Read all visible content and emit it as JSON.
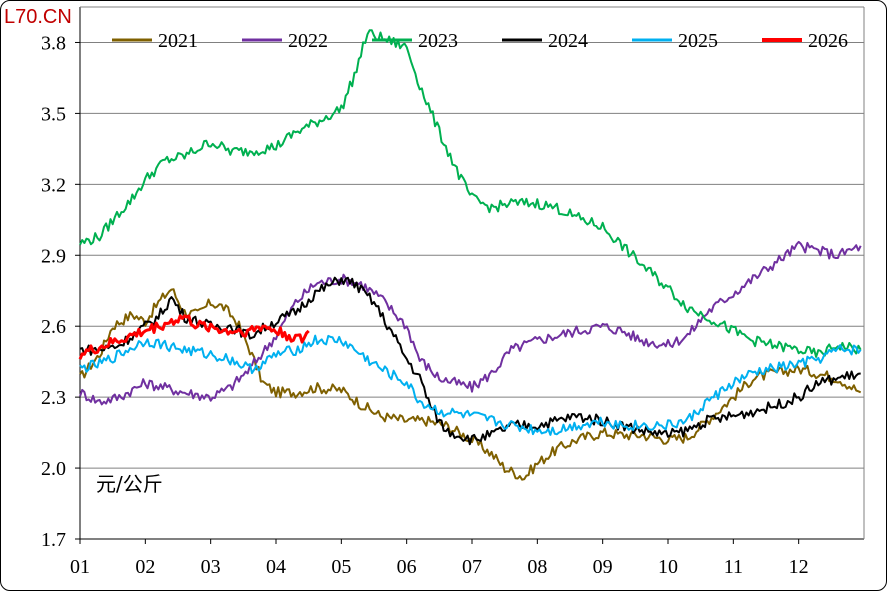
{
  "watermark": "L70.CN",
  "chart_data": {
    "type": "line",
    "ylabel": "元/公斤",
    "ylim": [
      1.7,
      3.95
    ],
    "yticks": [
      "1.7",
      "2.0",
      "2.3",
      "2.6",
      "2.9",
      "3.2",
      "3.5",
      "3.8"
    ],
    "yticks_values": [
      1.7,
      2.0,
      2.3,
      2.6,
      2.9,
      3.2,
      3.5,
      3.8
    ],
    "xticks": [
      "01",
      "02",
      "03",
      "04",
      "05",
      "06",
      "07",
      "08",
      "09",
      "10",
      "11",
      "12"
    ],
    "xlim": [
      1,
      13
    ],
    "grid": "horizontal",
    "legend_position": "top",
    "series": [
      {
        "name": "2021",
        "color": "#7f6000",
        "points": [
          [
            1.0,
            2.38
          ],
          [
            1.3,
            2.48
          ],
          [
            1.5,
            2.6
          ],
          [
            1.8,
            2.65
          ],
          [
            2.0,
            2.62
          ],
          [
            2.2,
            2.7
          ],
          [
            2.4,
            2.76
          ],
          [
            2.6,
            2.66
          ],
          [
            2.8,
            2.65
          ],
          [
            3.0,
            2.7
          ],
          [
            3.2,
            2.68
          ],
          [
            3.4,
            2.62
          ],
          [
            3.6,
            2.5
          ],
          [
            3.8,
            2.36
          ],
          [
            4.0,
            2.32
          ],
          [
            4.3,
            2.32
          ],
          [
            4.6,
            2.34
          ],
          [
            5.0,
            2.33
          ],
          [
            5.3,
            2.27
          ],
          [
            5.6,
            2.22
          ],
          [
            6.0,
            2.2
          ],
          [
            6.3,
            2.2
          ],
          [
            6.6,
            2.18
          ],
          [
            7.0,
            2.12
          ],
          [
            7.3,
            2.06
          ],
          [
            7.5,
            2.0
          ],
          [
            7.8,
            1.96
          ],
          [
            8.0,
            2.02
          ],
          [
            8.3,
            2.08
          ],
          [
            8.6,
            2.12
          ],
          [
            9.0,
            2.15
          ],
          [
            9.3,
            2.14
          ],
          [
            9.6,
            2.14
          ],
          [
            10.0,
            2.12
          ],
          [
            10.3,
            2.13
          ],
          [
            10.6,
            2.2
          ],
          [
            11.0,
            2.3
          ],
          [
            11.3,
            2.38
          ],
          [
            11.6,
            2.4
          ],
          [
            12.0,
            2.42
          ],
          [
            12.3,
            2.4
          ],
          [
            12.6,
            2.38
          ],
          [
            12.95,
            2.32
          ]
        ]
      },
      {
        "name": "2022",
        "color": "#7030a0",
        "points": [
          [
            1.0,
            2.32
          ],
          [
            1.3,
            2.28
          ],
          [
            1.6,
            2.3
          ],
          [
            2.0,
            2.36
          ],
          [
            2.3,
            2.34
          ],
          [
            2.6,
            2.32
          ],
          [
            3.0,
            2.3
          ],
          [
            3.3,
            2.34
          ],
          [
            3.6,
            2.42
          ],
          [
            4.0,
            2.56
          ],
          [
            4.3,
            2.7
          ],
          [
            4.6,
            2.78
          ],
          [
            5.0,
            2.8
          ],
          [
            5.3,
            2.78
          ],
          [
            5.6,
            2.72
          ],
          [
            6.0,
            2.6
          ],
          [
            6.2,
            2.46
          ],
          [
            6.5,
            2.38
          ],
          [
            7.0,
            2.34
          ],
          [
            7.3,
            2.4
          ],
          [
            7.6,
            2.5
          ],
          [
            8.0,
            2.54
          ],
          [
            8.3,
            2.56
          ],
          [
            8.6,
            2.58
          ],
          [
            9.0,
            2.6
          ],
          [
            9.3,
            2.58
          ],
          [
            9.6,
            2.54
          ],
          [
            10.0,
            2.52
          ],
          [
            10.3,
            2.56
          ],
          [
            10.6,
            2.66
          ],
          [
            11.0,
            2.74
          ],
          [
            11.3,
            2.8
          ],
          [
            11.6,
            2.86
          ],
          [
            12.0,
            2.94
          ],
          [
            12.3,
            2.92
          ],
          [
            12.6,
            2.9
          ],
          [
            12.95,
            2.94
          ]
        ]
      },
      {
        "name": "2023",
        "color": "#00b050",
        "points": [
          [
            1.0,
            2.95
          ],
          [
            1.3,
            2.98
          ],
          [
            1.6,
            3.08
          ],
          [
            1.8,
            3.14
          ],
          [
            2.0,
            3.22
          ],
          [
            2.3,
            3.3
          ],
          [
            2.6,
            3.32
          ],
          [
            3.0,
            3.38
          ],
          [
            3.3,
            3.34
          ],
          [
            3.6,
            3.34
          ],
          [
            4.0,
            3.36
          ],
          [
            4.3,
            3.42
          ],
          [
            4.6,
            3.46
          ],
          [
            5.0,
            3.52
          ],
          [
            5.2,
            3.66
          ],
          [
            5.4,
            3.84
          ],
          [
            5.6,
            3.82
          ],
          [
            5.8,
            3.8
          ],
          [
            6.0,
            3.78
          ],
          [
            6.2,
            3.62
          ],
          [
            6.5,
            3.42
          ],
          [
            6.8,
            3.24
          ],
          [
            7.0,
            3.14
          ],
          [
            7.3,
            3.1
          ],
          [
            7.6,
            3.12
          ],
          [
            8.0,
            3.12
          ],
          [
            8.3,
            3.1
          ],
          [
            8.6,
            3.06
          ],
          [
            9.0,
            3.02
          ],
          [
            9.3,
            2.94
          ],
          [
            9.6,
            2.86
          ],
          [
            10.0,
            2.76
          ],
          [
            10.3,
            2.68
          ],
          [
            10.6,
            2.64
          ],
          [
            11.0,
            2.58
          ],
          [
            11.3,
            2.54
          ],
          [
            11.6,
            2.52
          ],
          [
            12.0,
            2.5
          ],
          [
            12.3,
            2.48
          ],
          [
            12.6,
            2.52
          ],
          [
            12.95,
            2.5
          ]
        ]
      },
      {
        "name": "2024",
        "color": "#000000",
        "points": [
          [
            1.0,
            2.5
          ],
          [
            1.3,
            2.5
          ],
          [
            1.6,
            2.52
          ],
          [
            2.0,
            2.6
          ],
          [
            2.2,
            2.64
          ],
          [
            2.4,
            2.72
          ],
          [
            2.6,
            2.64
          ],
          [
            3.0,
            2.6
          ],
          [
            3.3,
            2.6
          ],
          [
            3.6,
            2.56
          ],
          [
            4.0,
            2.62
          ],
          [
            4.3,
            2.66
          ],
          [
            4.6,
            2.74
          ],
          [
            5.0,
            2.8
          ],
          [
            5.2,
            2.78
          ],
          [
            5.5,
            2.7
          ],
          [
            5.8,
            2.56
          ],
          [
            6.0,
            2.46
          ],
          [
            6.2,
            2.38
          ],
          [
            6.4,
            2.24
          ],
          [
            6.6,
            2.16
          ],
          [
            7.0,
            2.12
          ],
          [
            7.3,
            2.14
          ],
          [
            7.6,
            2.18
          ],
          [
            8.0,
            2.18
          ],
          [
            8.3,
            2.2
          ],
          [
            8.6,
            2.22
          ],
          [
            9.0,
            2.2
          ],
          [
            9.3,
            2.18
          ],
          [
            9.6,
            2.16
          ],
          [
            10.0,
            2.14
          ],
          [
            10.3,
            2.16
          ],
          [
            10.6,
            2.2
          ],
          [
            11.0,
            2.22
          ],
          [
            11.3,
            2.24
          ],
          [
            11.6,
            2.26
          ],
          [
            12.0,
            2.3
          ],
          [
            12.3,
            2.36
          ],
          [
            12.6,
            2.38
          ],
          [
            12.95,
            2.4
          ]
        ]
      },
      {
        "name": "2025",
        "color": "#00b0f0",
        "points": [
          [
            1.0,
            2.42
          ],
          [
            1.3,
            2.44
          ],
          [
            1.6,
            2.48
          ],
          [
            2.0,
            2.54
          ],
          [
            2.3,
            2.52
          ],
          [
            2.6,
            2.5
          ],
          [
            3.0,
            2.48
          ],
          [
            3.3,
            2.46
          ],
          [
            3.6,
            2.42
          ],
          [
            3.8,
            2.44
          ],
          [
            4.0,
            2.48
          ],
          [
            4.3,
            2.5
          ],
          [
            4.6,
            2.54
          ],
          [
            5.0,
            2.54
          ],
          [
            5.3,
            2.48
          ],
          [
            5.6,
            2.42
          ],
          [
            6.0,
            2.36
          ],
          [
            6.2,
            2.28
          ],
          [
            6.5,
            2.24
          ],
          [
            7.0,
            2.22
          ],
          [
            7.3,
            2.2
          ],
          [
            7.6,
            2.18
          ],
          [
            8.0,
            2.16
          ],
          [
            8.3,
            2.16
          ],
          [
            8.6,
            2.18
          ],
          [
            9.0,
            2.2
          ],
          [
            9.3,
            2.18
          ],
          [
            9.6,
            2.18
          ],
          [
            10.0,
            2.18
          ],
          [
            10.3,
            2.2
          ],
          [
            10.6,
            2.28
          ],
          [
            11.0,
            2.36
          ],
          [
            11.3,
            2.4
          ],
          [
            11.6,
            2.42
          ],
          [
            12.0,
            2.44
          ],
          [
            12.3,
            2.46
          ],
          [
            12.6,
            2.5
          ],
          [
            12.95,
            2.5
          ]
        ]
      },
      {
        "name": "2026",
        "color": "#ff0000",
        "points": [
          [
            1.0,
            2.48
          ],
          [
            1.2,
            2.5
          ],
          [
            1.4,
            2.52
          ],
          [
            1.6,
            2.54
          ],
          [
            1.8,
            2.56
          ],
          [
            2.0,
            2.58
          ],
          [
            2.2,
            2.6
          ],
          [
            2.4,
            2.62
          ],
          [
            2.6,
            2.64
          ],
          [
            2.8,
            2.6
          ],
          [
            3.0,
            2.6
          ],
          [
            3.2,
            2.58
          ],
          [
            3.4,
            2.58
          ],
          [
            3.6,
            2.58
          ],
          [
            3.8,
            2.6
          ],
          [
            4.0,
            2.58
          ],
          [
            4.2,
            2.56
          ],
          [
            4.4,
            2.54
          ],
          [
            4.5,
            2.58
          ]
        ]
      }
    ]
  }
}
